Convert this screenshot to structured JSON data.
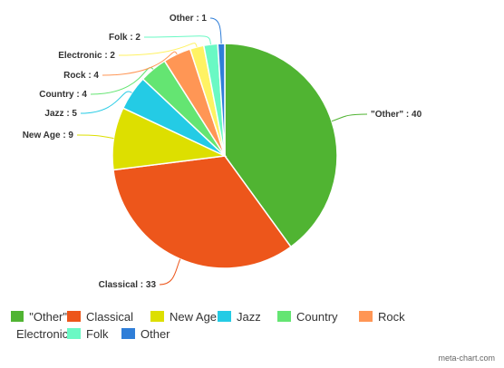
{
  "chart_data": {
    "type": "pie",
    "slices": [
      {
        "name": "\"Other\"",
        "value": 40,
        "color": "#50b432",
        "label": "\"Other\" : 40"
      },
      {
        "name": "Classical",
        "value": 33,
        "color": "#ed561b",
        "label": "Classical : 33"
      },
      {
        "name": "New Age",
        "value": 9,
        "color": "#dddf00",
        "label": "New Age : 9"
      },
      {
        "name": "Jazz",
        "value": 5,
        "color": "#24cbe5",
        "label": "Jazz : 5"
      },
      {
        "name": "Country",
        "value": 4,
        "color": "#64e572",
        "label": "Country : 4"
      },
      {
        "name": "Rock",
        "value": 4,
        "color": "#ff9655",
        "label": "Rock : 4"
      },
      {
        "name": "Electronic",
        "value": 2,
        "color": "#fff263",
        "label": "Electronic : 2"
      },
      {
        "name": "Folk",
        "value": 2,
        "color": "#6af9c4",
        "label": "Folk : 2"
      },
      {
        "name": "Other",
        "value": 1,
        "color": "#2f7ed8",
        "label": "Other : 1"
      }
    ],
    "legend_position": "bottom",
    "title": ""
  },
  "credit": "meta-chart.com"
}
